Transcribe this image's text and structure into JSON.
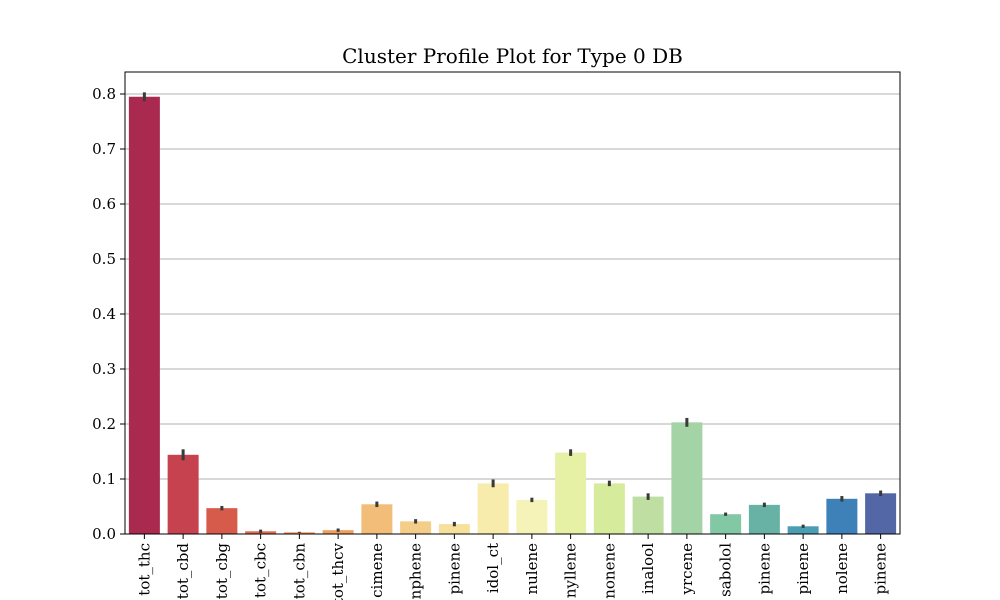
{
  "chart_data": {
    "type": "bar",
    "title": "Cluster Profile Plot for Type 0 DB",
    "xlabel": "",
    "ylabel": "",
    "ylim": [
      0,
      0.84
    ],
    "yticks": [
      0.0,
      0.1,
      0.2,
      0.3,
      0.4,
      0.5,
      0.6,
      0.7,
      0.8
    ],
    "ytick_labels": [
      "0.0",
      "0.1",
      "0.2",
      "0.3",
      "0.4",
      "0.5",
      "0.6",
      "0.7",
      "0.8"
    ],
    "grid": "horizontal",
    "categories": [
      "tot_thc",
      "tot_cbd",
      "tot_cbg",
      "tot_cbc",
      "tot_cbn",
      "tot_thcv",
      "cimene",
      "nphene",
      "pinene",
      "idol_ct",
      "nulene",
      "nyllene",
      "nonene",
      "inalool",
      "yrcene",
      "sabolol",
      "pinene",
      "pinene",
      "nolene",
      "pinene"
    ],
    "values": [
      0.795,
      0.144,
      0.047,
      0.005,
      0.003,
      0.007,
      0.054,
      0.023,
      0.018,
      0.092,
      0.062,
      0.148,
      0.092,
      0.068,
      0.203,
      0.036,
      0.053,
      0.014,
      0.064,
      0.074
    ],
    "errors": [
      0.008,
      0.01,
      0.004,
      0.003,
      0.001,
      0.003,
      0.005,
      0.004,
      0.004,
      0.007,
      0.004,
      0.006,
      0.005,
      0.006,
      0.008,
      0.003,
      0.004,
      0.003,
      0.005,
      0.005
    ],
    "colors": [
      "#a9294f",
      "#c6424f",
      "#d65b4a",
      "#e46c4f",
      "#ee8a55",
      "#f29e5c",
      "#f2bd78",
      "#f4cd88",
      "#f7e09b",
      "#f7ecab",
      "#f5f3b8",
      "#e7f1a5",
      "#d6eb9b",
      "#bfdfa2",
      "#a4d4a5",
      "#83c8a4",
      "#67b2a5",
      "#4a9db3",
      "#3e80b8",
      "#5366a6"
    ],
    "errorbar_color": "#3a3a3a"
  }
}
